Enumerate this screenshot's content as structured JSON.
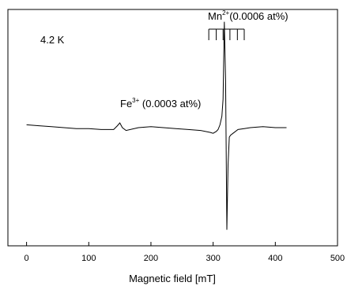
{
  "chart_data": {
    "type": "line",
    "xlabel": "Magnetic field [mT]",
    "ylabel": "",
    "xlim": [
      -30,
      500
    ],
    "ylim": [
      -1.25,
      1.25
    ],
    "x_ticks": [
      0,
      100,
      200,
      300,
      400,
      500
    ],
    "x_tick_labels": [
      "0",
      "100",
      "200",
      "300",
      "400",
      "500"
    ],
    "y_tick_labels": [],
    "grid": false,
    "legend": "none",
    "series": [
      {
        "x": [
          0,
          20,
          40,
          60,
          80,
          100,
          120,
          140,
          146,
          150,
          154,
          160,
          180,
          200,
          220,
          240,
          260,
          280,
          295,
          300,
          305,
          308,
          311,
          314,
          316,
          318,
          320,
          322,
          324,
          326,
          328,
          332,
          340,
          350,
          360,
          380,
          400,
          418
        ],
        "y": [
          0.03,
          0.02,
          0.01,
          0.0,
          -0.01,
          -0.01,
          -0.02,
          -0.02,
          0.02,
          0.05,
          0.0,
          -0.03,
          0.0,
          0.01,
          0.0,
          -0.01,
          -0.02,
          -0.03,
          -0.05,
          -0.06,
          -0.04,
          -0.02,
          0.03,
          0.12,
          0.3,
          1.12,
          0.5,
          -1.08,
          -0.4,
          -0.1,
          -0.08,
          -0.06,
          -0.02,
          -0.01,
          0.0,
          0.01,
          0.0,
          0.0
        ]
      }
    ],
    "annotations": {
      "temperature": "4.2 K",
      "mn_label": "Mn",
      "mn_sup": "2+",
      "mn_conc": "(0.0006 at%)",
      "fe_label": "Fe",
      "fe_sup": "3+",
      "fe_conc": " (0.0003 at%)",
      "mn_hyperfine_lines_x": [
        293,
        305,
        316,
        327,
        339,
        350
      ]
    }
  }
}
